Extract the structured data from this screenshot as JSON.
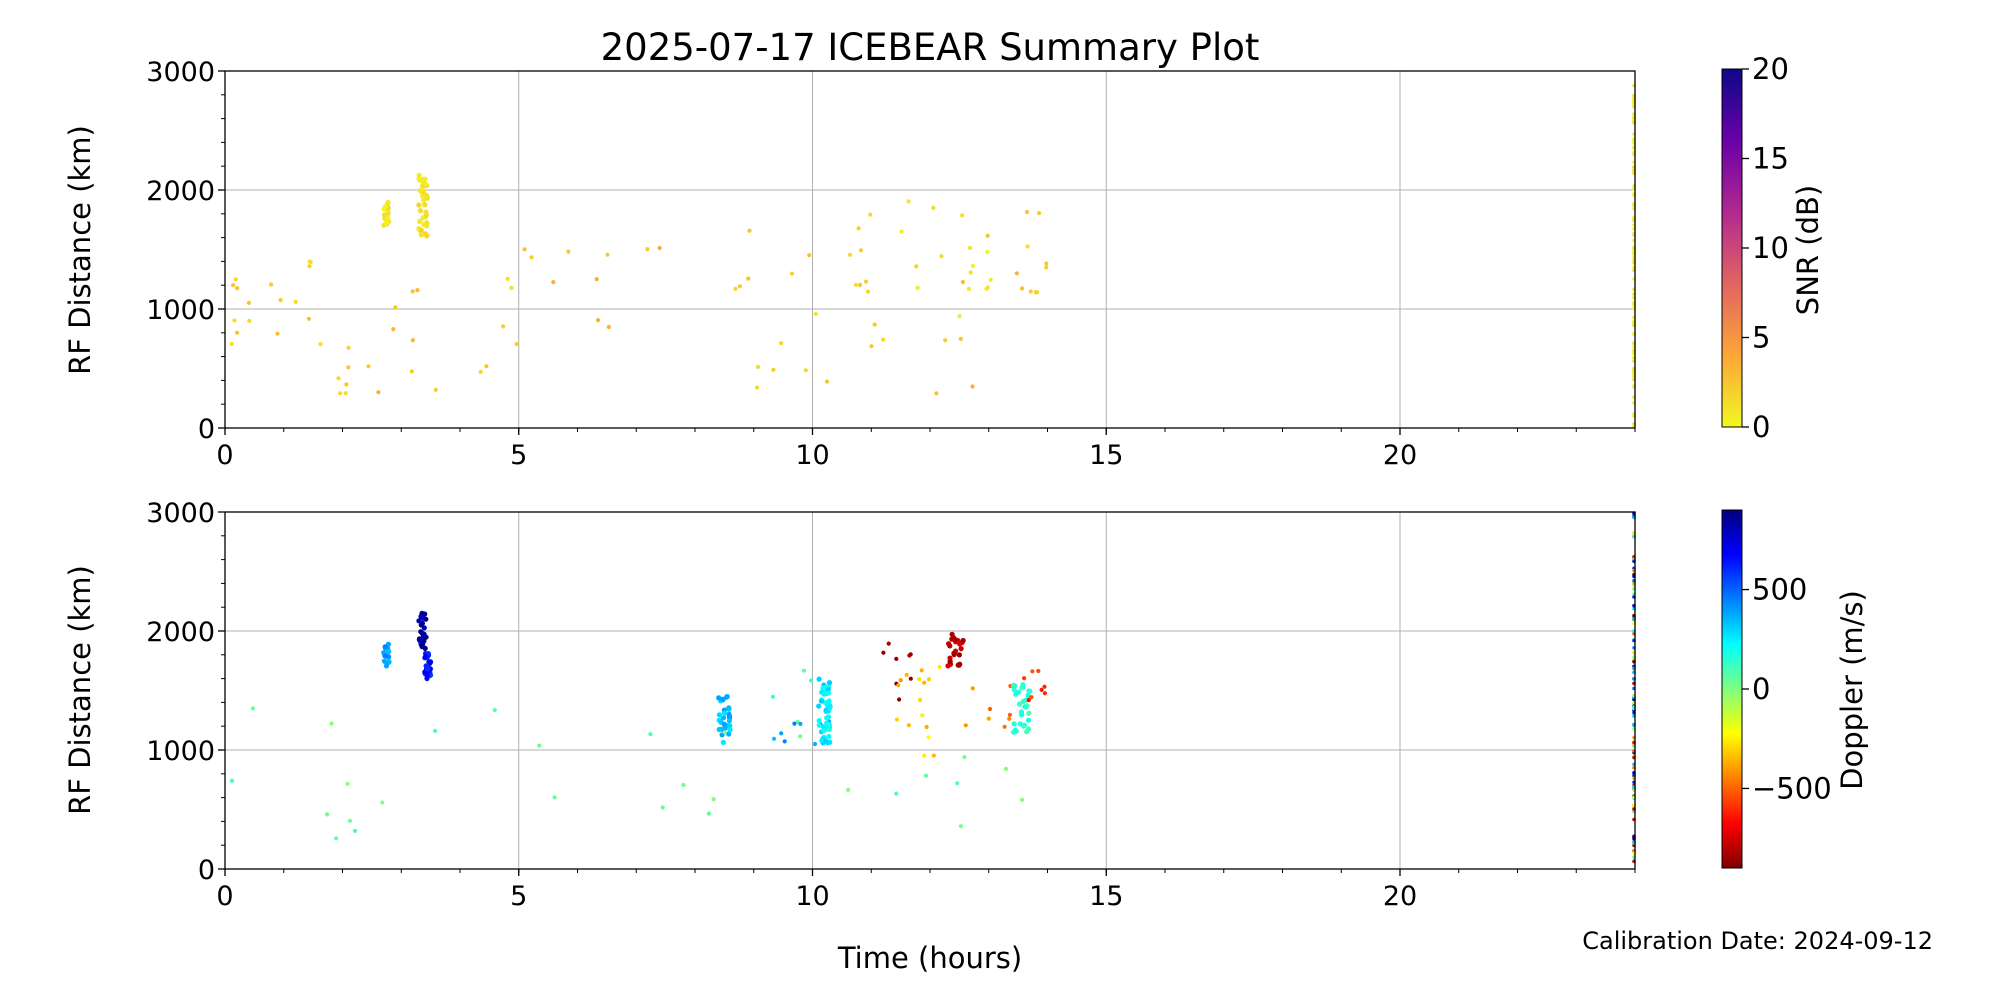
{
  "title": "2025-07-17 ICEBEAR Summary Plot",
  "xlabel": "Time (hours)",
  "calibration": "Calibration Date: 2024-09-12",
  "chart_data": [
    {
      "type": "scatter",
      "name": "snr",
      "ylabel": "RF Distance (km)",
      "xlim": [
        0,
        24
      ],
      "ylim": [
        0,
        3000
      ],
      "xticks": [
        "0",
        "5",
        "10",
        "15",
        "20"
      ],
      "yticks": [
        "0",
        "1000",
        "2000",
        "3000"
      ],
      "grid": true,
      "colorbar": {
        "label": "SNR (dB)",
        "range": [
          0,
          20
        ],
        "ticks": [
          "0",
          "5",
          "10",
          "15",
          "20"
        ],
        "colormap": "plasma_r",
        "colors": [
          "#f0f921",
          "#fca636",
          "#e16462",
          "#b12a90",
          "#6a00a8",
          "#0d0887"
        ]
      },
      "clusters": [
        {
          "x": [
            0.1,
            0.5
          ],
          "y": [
            700,
            1300
          ],
          "value": 2
        },
        {
          "x": [
            0.7,
            1.5
          ],
          "y": [
            650,
            1450
          ],
          "value": 2
        },
        {
          "x": [
            1.5,
            2.5
          ],
          "y": [
            200,
            1150
          ],
          "value": 2
        },
        {
          "x": [
            2.7,
            2.8
          ],
          "y": [
            1700,
            1900
          ],
          "value": 1
        },
        {
          "x": [
            3.3,
            3.45
          ],
          "y": [
            1600,
            2150
          ],
          "value": 1
        },
        {
          "x": [
            2.5,
            4.2
          ],
          "y": [
            250,
            1350
          ],
          "value": 3
        },
        {
          "x": [
            4.2,
            5.5
          ],
          "y": [
            400,
            1850
          ],
          "value": 2
        },
        {
          "x": [
            5.5,
            8.0
          ],
          "y": [
            250,
            1600
          ],
          "value": 3
        },
        {
          "x": [
            8.2,
            9.5
          ],
          "y": [
            250,
            1750
          ],
          "value": 2
        },
        {
          "x": [
            9.5,
            10.8
          ],
          "y": [
            300,
            1900
          ],
          "value": 2
        },
        {
          "x": [
            10.8,
            11.5
          ],
          "y": [
            400,
            1850
          ],
          "value": 2
        },
        {
          "x": [
            11.3,
            12.6
          ],
          "y": [
            900,
            2000
          ],
          "value": 1
        },
        {
          "x": [
            11.5,
            13.8
          ],
          "y": [
            250,
            1650
          ],
          "value": 3
        },
        {
          "x": [
            12.6,
            13.5
          ],
          "y": [
            1150,
            1550
          ],
          "value": 1
        },
        {
          "x": [
            13.5,
            14.0
          ],
          "y": [
            1000,
            1850
          ],
          "value": 2
        }
      ],
      "edge_column": {
        "x": 24,
        "y": [
          0,
          3000
        ]
      }
    },
    {
      "type": "scatter",
      "name": "doppler",
      "ylabel": "RF Distance (km)",
      "xlim": [
        0,
        24
      ],
      "ylim": [
        0,
        3000
      ],
      "xticks": [
        "0",
        "5",
        "10",
        "15",
        "20"
      ],
      "yticks": [
        "0",
        "1000",
        "2000",
        "3000"
      ],
      "grid": true,
      "colorbar": {
        "label": "Doppler (m/s)",
        "range": [
          -900,
          900
        ],
        "ticks": [
          "−500",
          "0",
          "500"
        ],
        "tick_values": [
          -500,
          0,
          500
        ],
        "colormap": "jet_r",
        "colors": [
          "#7f0000",
          "#ff0000",
          "#ff7f00",
          "#ffff00",
          "#7fff7f",
          "#00ffff",
          "#007fff",
          "#0000ff",
          "#00007f"
        ]
      },
      "clusters": [
        {
          "x": [
            0.1,
            2.5
          ],
          "y": [
            200,
            1450
          ],
          "value": 40
        },
        {
          "x": [
            2.7,
            2.8
          ],
          "y": [
            1700,
            1900
          ],
          "value": 380
        },
        {
          "x": [
            3.3,
            3.45
          ],
          "y": [
            1850,
            2150
          ],
          "value": 850
        },
        {
          "x": [
            3.4,
            3.5
          ],
          "y": [
            1550,
            1850
          ],
          "value": 650
        },
        {
          "x": [
            2.5,
            8.0
          ],
          "y": [
            250,
            1600
          ],
          "value": 60
        },
        {
          "x": [
            8.4,
            8.6
          ],
          "y": [
            1050,
            1450
          ],
          "value": 330
        },
        {
          "x": [
            8.2,
            10.0
          ],
          "y": [
            250,
            1750
          ],
          "value": 60
        },
        {
          "x": [
            9.3,
            10.3
          ],
          "y": [
            1050,
            1250
          ],
          "value": 400
        },
        {
          "x": [
            10.1,
            10.3
          ],
          "y": [
            1050,
            1600
          ],
          "value": 250
        },
        {
          "x": [
            11.2,
            11.7
          ],
          "y": [
            1400,
            1950
          ],
          "value": -850
        },
        {
          "x": [
            11.4,
            12.2
          ],
          "y": [
            1100,
            1800
          ],
          "value": -350
        },
        {
          "x": [
            11.8,
            12.2
          ],
          "y": [
            900,
            1700
          ],
          "value": -300
        },
        {
          "x": [
            12.3,
            12.6
          ],
          "y": [
            1700,
            2000
          ],
          "value": -800
        },
        {
          "x": [
            12.6,
            13.4
          ],
          "y": [
            1150,
            1550
          ],
          "value": -450
        },
        {
          "x": [
            10.5,
            13.8
          ],
          "y": [
            250,
            1000
          ],
          "value": 60
        },
        {
          "x": [
            13.4,
            13.7
          ],
          "y": [
            1150,
            1550
          ],
          "value": 150
        },
        {
          "x": [
            13.6,
            14.0
          ],
          "y": [
            1350,
            1850
          ],
          "value": -600
        }
      ],
      "edge_column": {
        "x": 24,
        "y": [
          0,
          3000
        ]
      }
    }
  ]
}
